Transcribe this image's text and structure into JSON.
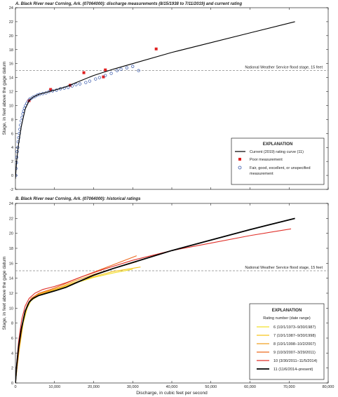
{
  "figure": {
    "xlabel": "Discharge, in cubic feet per second",
    "ylabel": "Stage, in feet above the gage datum"
  },
  "chart_data": [
    {
      "type": "scatter",
      "title": "A. Black River near Corning, Ark. (07064000): discharge measurements (8/15/1938 to 7/11/2019) and current rating",
      "ylabel": "Stage, in feet above the gage datum",
      "xlim": [
        0,
        80000
      ],
      "ylim": [
        -2,
        24
      ],
      "x_ticks": [
        0,
        10000,
        20000,
        30000,
        40000,
        50000,
        60000,
        70000,
        80000
      ],
      "y_ticks": [
        -2,
        0,
        2,
        4,
        6,
        8,
        10,
        12,
        14,
        16,
        18,
        20,
        22,
        24
      ],
      "grid": false,
      "reference_line": {
        "y": 15,
        "label": "National Weather Service flood stage, 15 feet"
      },
      "legend": {
        "title": "EXPLANATION",
        "placement": "bottom-right",
        "entries": [
          "Current (2019) rating curve (11)",
          "Poor measurement",
          "Fair, good, excellent, or unspecified measurement"
        ]
      },
      "series": [
        {
          "name": "Current (2019) rating curve (11)",
          "kind": "line",
          "color": "#000000",
          "x": [
            0,
            300,
            800,
            1500,
            2500,
            3500,
            4500,
            6000,
            8000,
            10000,
            13000,
            16000,
            20000,
            25000,
            30000,
            40000,
            50000,
            60000,
            71500
          ],
          "y": [
            -0.5,
            2,
            4.5,
            7,
            9.5,
            10.7,
            11.2,
            11.6,
            11.9,
            12.2,
            12.7,
            13.4,
            14.3,
            15.2,
            16,
            17.6,
            19,
            20.4,
            22
          ]
        },
        {
          "name": "Poor measurement",
          "kind": "marker",
          "marker": "square",
          "color": "#e02020",
          "x": [
            3500,
            9000,
            14000,
            17500,
            22500,
            23000,
            36000
          ],
          "y": [
            10.7,
            12.3,
            12.9,
            14.7,
            14.1,
            15.1,
            18.1
          ]
        },
        {
          "name": "Fair, good, excellent, or unspecified measurement",
          "kind": "marker",
          "marker": "open-circle",
          "color": "#3355aa",
          "x": [
            80,
            150,
            250,
            350,
            450,
            600,
            700,
            850,
            1000,
            1150,
            1300,
            1500,
            1700,
            1900,
            2100,
            2300,
            2600,
            2900,
            3200,
            3600,
            4000,
            4500,
            5000,
            5600,
            6200,
            7000,
            7800,
            8600,
            9500,
            10500,
            11500,
            12500,
            13500,
            14500,
            15500,
            16500,
            18000,
            19000,
            20500,
            21500,
            23000,
            24500,
            26000,
            27000,
            28500,
            30000,
            31500
          ],
          "y": [
            0,
            1,
            1.8,
            2.6,
            3.4,
            4,
            4.8,
            5.4,
            6,
            6.6,
            7.2,
            7.8,
            8.3,
            8.8,
            9.2,
            9.6,
            10,
            10.3,
            10.6,
            10.9,
            11,
            11.2,
            11.3,
            11.5,
            11.6,
            11.7,
            11.8,
            12,
            12.1,
            12.2,
            12.4,
            12.5,
            12.6,
            12.8,
            13,
            13.1,
            13.3,
            13.5,
            13.8,
            14,
            14.3,
            14.6,
            15,
            15.2,
            15.4,
            15.6,
            15
          ]
        }
      ]
    },
    {
      "type": "line",
      "title": "B. Black River near Corning, Ark. (07064000): historical ratings",
      "xlabel": "Discharge, in cubic feet per second",
      "ylabel": "Stage, in feet above the gage datum",
      "xlim": [
        0,
        80000
      ],
      "ylim": [
        0,
        24
      ],
      "x_ticks": [
        0,
        10000,
        20000,
        30000,
        40000,
        50000,
        60000,
        70000,
        80000
      ],
      "x_tick_labels": [
        "0",
        "10,000",
        "20,000",
        "30,000",
        "40,000",
        "50,000",
        "60,000",
        "70,000",
        "80,000"
      ],
      "y_ticks": [
        0,
        2,
        4,
        6,
        8,
        10,
        12,
        14,
        16,
        18,
        20,
        22,
        24
      ],
      "grid": false,
      "reference_line": {
        "y": 15,
        "label": "National Weather Service flood stage, 15 feet"
      },
      "legend": {
        "title": "EXPLANATION",
        "subtitle": "Rating number (date range)",
        "placement": "bottom-right",
        "entries": [
          "6 (10/1/1973–9/30/1987)",
          "7 (10/1/1987–9/30/1998)",
          "8 (10/1/1998–10/2/2007)",
          "9 (10/3/2007–3/29/2011)",
          "10 (3/30/2011–11/5/2014)",
          "11 (11/6/2014–present)"
        ]
      },
      "series": [
        {
          "name": "6 (10/1/1973–9/30/1987)",
          "color": "#f2e02a",
          "x": [
            0,
            400,
            1000,
            2000,
            3000,
            4000,
            6000,
            9000,
            12000,
            15000,
            20000,
            25000,
            30000
          ],
          "y": [
            0,
            2,
            4.5,
            8,
            10,
            11,
            11.7,
            12.2,
            12.7,
            13.3,
            14.1,
            14.7,
            15.2
          ]
        },
        {
          "name": "7 (10/1/1987–9/30/1998)",
          "color": "#f7c51a",
          "x": [
            0,
            400,
            1000,
            2000,
            3000,
            4000,
            6000,
            9000,
            12000,
            15000,
            20000,
            25000,
            32000
          ],
          "y": [
            0,
            2,
            4.6,
            8.2,
            10.2,
            11.1,
            11.8,
            12.3,
            12.8,
            13.4,
            14.2,
            14.9,
            15.5
          ]
        },
        {
          "name": "8 (10/1/1998–10/2/2007)",
          "color": "#f0a022",
          "x": [
            0,
            400,
            1000,
            2000,
            3000,
            4000,
            6000,
            9000,
            12000,
            15000,
            20000,
            25000,
            31000
          ],
          "y": [
            0,
            2,
            4.8,
            8.4,
            10.3,
            11.2,
            11.9,
            12.4,
            12.9,
            13.6,
            14.5,
            15.3,
            16.2
          ]
        },
        {
          "name": "9 (10/3/2007–3/29/2011)",
          "color": "#ec6a1e",
          "x": [
            0,
            400,
            1000,
            2000,
            3000,
            4000,
            6000,
            9000,
            12000,
            15000,
            20000,
            25000,
            31000
          ],
          "y": [
            0,
            2.2,
            5,
            8.6,
            10.4,
            11.3,
            12,
            12.5,
            13.1,
            13.8,
            14.8,
            15.8,
            17
          ]
        },
        {
          "name": "10 (3/30/2011–11/5/2014)",
          "color": "#e0302a",
          "x": [
            0,
            300,
            800,
            1600,
            2500,
            3500,
            5000,
            7000,
            10000,
            13000,
            17000,
            22000,
            30000,
            40000,
            50000,
            60000,
            70500
          ],
          "y": [
            0,
            2.5,
            5.5,
            8.5,
            10.3,
            11.3,
            12,
            12.5,
            12.9,
            13.4,
            14.2,
            15.1,
            16.4,
            17.7,
            18.7,
            19.7,
            20.6
          ]
        },
        {
          "name": "11 (11/6/2014–present)",
          "color": "#000000",
          "x": [
            0,
            300,
            800,
            1500,
            2500,
            3500,
            4500,
            6000,
            8000,
            10000,
            13000,
            16000,
            20000,
            25000,
            30000,
            40000,
            50000,
            60000,
            71500
          ],
          "y": [
            0,
            2.2,
            4.8,
            7.2,
            9.6,
            10.8,
            11.3,
            11.7,
            12,
            12.3,
            12.8,
            13.5,
            14.4,
            15.3,
            16.1,
            17.7,
            19.1,
            20.5,
            22
          ]
        }
      ]
    }
  ]
}
